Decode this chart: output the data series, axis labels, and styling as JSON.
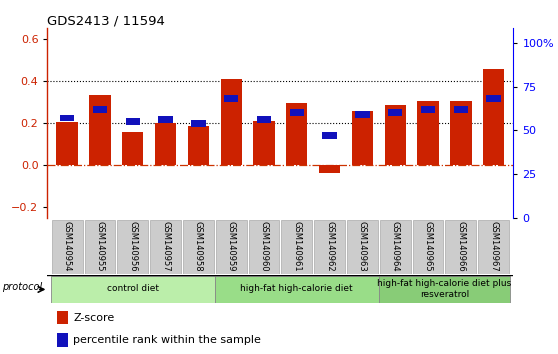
{
  "title": "GDS2413 / 11594",
  "samples": [
    "GSM140954",
    "GSM140955",
    "GSM140956",
    "GSM140957",
    "GSM140958",
    "GSM140959",
    "GSM140960",
    "GSM140961",
    "GSM140962",
    "GSM140963",
    "GSM140964",
    "GSM140965",
    "GSM140966",
    "GSM140967"
  ],
  "z_scores": [
    0.205,
    0.335,
    0.158,
    0.2,
    0.185,
    0.408,
    0.21,
    0.295,
    -0.038,
    0.255,
    0.285,
    0.305,
    0.305,
    0.458
  ],
  "pct_ranks": [
    57,
    62,
    55,
    56,
    54,
    68,
    56,
    60,
    47,
    59,
    60,
    62,
    62,
    68
  ],
  "bar_color": "#cc2200",
  "dot_color": "#1111bb",
  "groups": [
    {
      "label": "control diet",
      "start": 0,
      "end": 5,
      "color": "#bbeeaa"
    },
    {
      "label": "high-fat high-calorie diet",
      "start": 5,
      "end": 10,
      "color": "#99dd88"
    },
    {
      "label": "high-fat high-calorie diet plus\nresveratrol",
      "start": 10,
      "end": 14,
      "color": "#88cc77"
    }
  ],
  "ylim_left": [
    -0.25,
    0.65
  ],
  "ylim_right": [
    0,
    108.33
  ],
  "yticks_left": [
    -0.2,
    0.0,
    0.2,
    0.4,
    0.6
  ],
  "yticks_right": [
    0,
    25,
    50,
    75,
    100
  ],
  "ytick_labels_right": [
    "0",
    "25",
    "50",
    "75",
    "100%"
  ],
  "hlines": [
    0.2,
    0.4
  ],
  "dotted_line_color": "#000000",
  "background_color": "#ffffff",
  "zero_line_color": "#cc3300",
  "box_color": "#cccccc",
  "box_border_color": "#aaaaaa"
}
